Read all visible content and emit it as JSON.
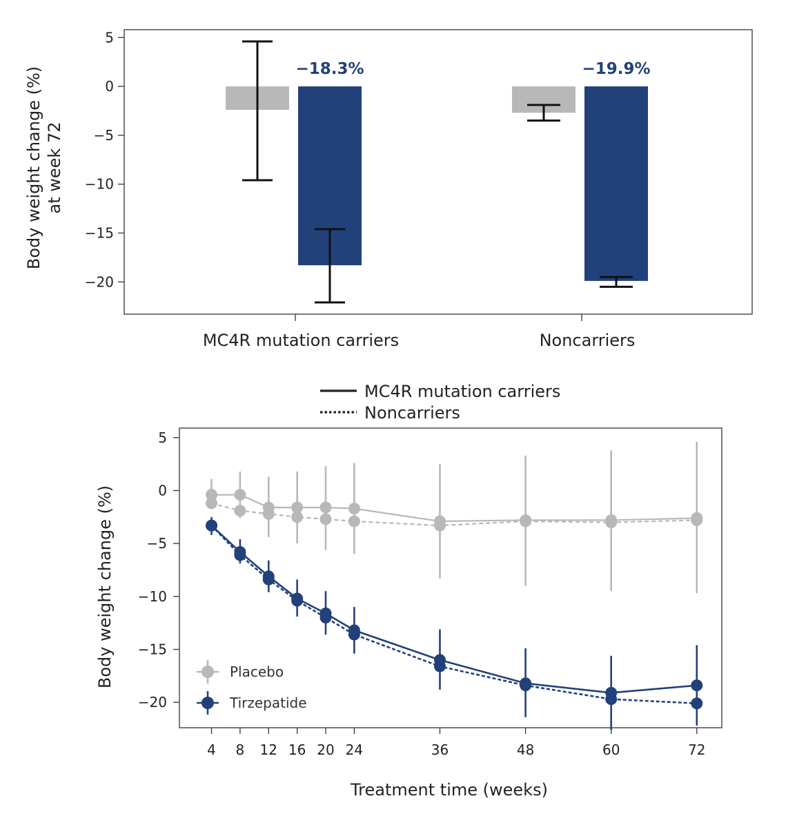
{
  "colors": {
    "placebo": "#b8b8b8",
    "tirzepatide": "#22417a",
    "line_legend": "#222222"
  },
  "chart_data": [
    {
      "type": "bar",
      "ylabel_line1": "Body weight change (%)",
      "ylabel_line2": "at week 72",
      "ylim": [
        -23.3,
        5.8
      ],
      "yticks": [
        5,
        0,
        -5,
        -10,
        -15,
        -20
      ],
      "ytick_labels": [
        "5",
        "0",
        "−5",
        "−10",
        "−15",
        "−20"
      ],
      "categories": [
        "MC4R mutation carriers",
        "Noncarriers"
      ],
      "series": [
        {
          "name": "Placebo",
          "values": [
            -2.4,
            -2.7
          ],
          "err_low": [
            -9.6,
            -3.5
          ],
          "err_high": [
            4.6,
            -1.9
          ]
        },
        {
          "name": "Tirzepatide",
          "values": [
            -18.3,
            -19.9
          ],
          "err_low": [
            -22.1,
            -20.5
          ],
          "err_high": [
            -14.6,
            -19.5
          ],
          "value_labels": [
            "−18.3%",
            "−19.9%"
          ]
        }
      ]
    },
    {
      "type": "line",
      "xlabel": "Treatment time (weeks)",
      "ylabel": "Body weight change (%)",
      "xlim": [
        -0.5,
        75.5
      ],
      "ylim": [
        -22.4,
        5.9
      ],
      "x": [
        4,
        8,
        12,
        16,
        20,
        24,
        36,
        48,
        60,
        72
      ],
      "xtick_labels": [
        "4",
        "8",
        "12",
        "16",
        "20",
        "24",
        "36",
        "48",
        "60",
        "72"
      ],
      "yticks": [
        5,
        0,
        -5,
        -10,
        -15,
        -20
      ],
      "ytick_labels": [
        "5",
        "0",
        "−5",
        "−10",
        "−15",
        "−20"
      ],
      "line_legend": [
        {
          "label": "MC4R mutation carriers",
          "style": "solid"
        },
        {
          "label": "Noncarriers",
          "style": "dotted"
        }
      ],
      "marker_legend": [
        {
          "label": "Placebo",
          "color_key": "placebo"
        },
        {
          "label": "Tirzepatide",
          "color_key": "tirzepatide"
        }
      ],
      "series": [
        {
          "name": "Placebo – Noncarriers",
          "group": "placebo",
          "style": "dashed",
          "values": [
            -1.2,
            -1.9,
            -2.2,
            -2.5,
            -2.7,
            -2.9,
            -3.3,
            -2.9,
            -3.0,
            -2.8
          ]
        },
        {
          "name": "Placebo – MC4R mutation carriers",
          "group": "placebo",
          "style": "solid",
          "values": [
            -0.4,
            -0.4,
            -1.6,
            -1.6,
            -1.6,
            -1.7,
            -2.9,
            -2.8,
            -2.8,
            -2.6
          ],
          "err_low": [
            -1.6,
            -2.6,
            -4.4,
            -5.0,
            -5.6,
            -6.0,
            -8.3,
            -9.0,
            -9.5,
            -9.7
          ],
          "err_high": [
            1.1,
            1.8,
            1.3,
            1.8,
            2.3,
            2.6,
            2.5,
            3.3,
            3.8,
            4.6
          ]
        },
        {
          "name": "Tirzepatide – Noncarriers",
          "group": "tirzepatide",
          "style": "dashed",
          "values": [
            -3.3,
            -6.1,
            -8.4,
            -10.4,
            -12.0,
            -13.6,
            -16.6,
            -18.4,
            -19.7,
            -20.1
          ]
        },
        {
          "name": "Tirzepatide – MC4R mutation carriers",
          "group": "tirzepatide",
          "style": "solid",
          "values": [
            -3.3,
            -5.8,
            -8.1,
            -10.2,
            -11.6,
            -13.2,
            -16.0,
            -18.2,
            -19.1,
            -18.4
          ],
          "err_low": [
            -4.2,
            -6.9,
            -9.6,
            -11.9,
            -13.6,
            -15.4,
            -18.8,
            -21.4,
            -22.6,
            -22.2
          ],
          "err_high": [
            -2.5,
            -4.6,
            -6.6,
            -8.4,
            -9.5,
            -11.0,
            -13.1,
            -14.9,
            -15.6,
            -14.6
          ]
        }
      ]
    }
  ]
}
